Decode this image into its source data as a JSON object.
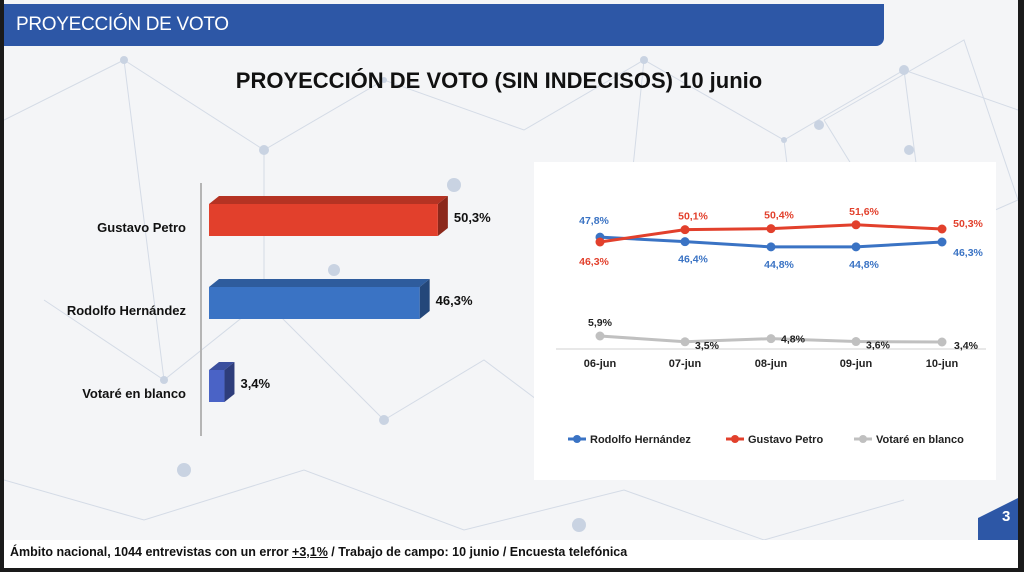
{
  "header": {
    "title": "PROYECCIÓN DE VOTO"
  },
  "colors": {
    "header_bg": "#2d57a6",
    "petro": "#e2402c",
    "hernandez": "#3a73c4",
    "blanco_bar": "#4a63c6",
    "blanco_line": "#c0c0c0"
  },
  "chart_data": [
    {
      "type": "bar",
      "orientation": "horizontal",
      "title": "PROYECCIÓN DE VOTO (SIN INDECISOS) 10 junio",
      "categories": [
        "Gustavo Petro",
        "Rodolfo Hernández",
        "Votaré en blanco"
      ],
      "values": [
        50.3,
        46.3,
        3.4
      ],
      "labels": [
        "50,3%",
        "46,3%",
        "3,4%"
      ]
    },
    {
      "type": "line",
      "x": [
        "06-jun",
        "07-jun",
        "08-jun",
        "09-jun",
        "10-jun"
      ],
      "legend": "bottom",
      "series": [
        {
          "name": "Rodolfo Hernández",
          "values": [
            47.8,
            46.4,
            44.8,
            44.8,
            46.3
          ],
          "labels": [
            "47,8%",
            "46,4%",
            "44,8%",
            "44,8%",
            "46,3%"
          ]
        },
        {
          "name": "Gustavo Petro",
          "values": [
            46.3,
            50.1,
            50.4,
            51.6,
            50.3
          ],
          "labels": [
            "46,3%",
            "50,1%",
            "50,4%",
            "51,6%",
            "50,3%"
          ]
        },
        {
          "name": "Votaré en blanco",
          "values": [
            5.9,
            3.5,
            4.8,
            3.6,
            3.4
          ],
          "labels": [
            "5,9%",
            "3,5%",
            "4,8%",
            "3,6%",
            "3,4%"
          ]
        }
      ]
    }
  ],
  "footer": {
    "note_prefix": "Ámbito nacional, 1044 entrevistas con un error ",
    "error_value": "+3,1%",
    "note_suffix": " / Trabajo de campo: 10 junio / Encuesta telefónica"
  },
  "page": {
    "number": "3"
  }
}
